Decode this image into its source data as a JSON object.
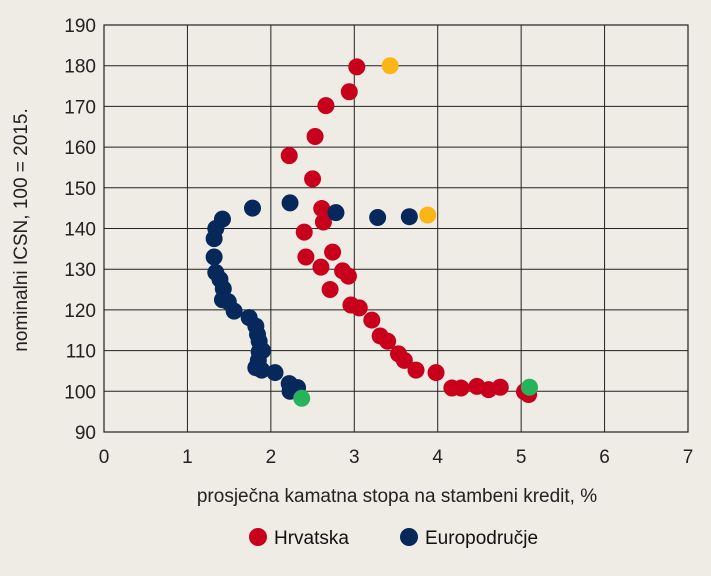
{
  "chart_data": {
    "type": "scatter",
    "title": "",
    "xlabel": "prosječna kamatna stopa na stambeni kredit, %",
    "ylabel": "nominalni ICSN, 100 = 2015.",
    "xlim": [
      0,
      7
    ],
    "ylim": [
      90,
      190
    ],
    "x_ticks": [
      "0",
      "1",
      "2",
      "3",
      "4",
      "5",
      "6",
      "7"
    ],
    "y_ticks": [
      "90",
      "100",
      "110",
      "120",
      "130",
      "140",
      "150",
      "160",
      "170",
      "180",
      "190"
    ],
    "grid": true,
    "legend_position": "bottom",
    "colors": {
      "hrvatska": "#c8001c",
      "europodrucje": "#06285a",
      "highlight_last": "#fdb515",
      "highlight_first": "#27b35b",
      "grid": "#222222",
      "background": "#efebe5"
    },
    "series": [
      {
        "name": "Hrvatska",
        "color_key": "hrvatska",
        "x": [
          5.09,
          5.04,
          4.75,
          4.61,
          4.47,
          4.28,
          4.17,
          3.98,
          3.74,
          3.6,
          3.53,
          3.4,
          3.31,
          3.21,
          3.06,
          2.96,
          2.93,
          2.86,
          2.71,
          2.74,
          2.6,
          2.42,
          2.4,
          2.63,
          2.61,
          2.5,
          2.22,
          2.53,
          2.66,
          2.94,
          3.03
        ],
        "y": [
          99.2,
          99.9,
          101.0,
          100.4,
          101.2,
          100.8,
          100.8,
          104.6,
          105.2,
          107.6,
          109.2,
          112.3,
          113.6,
          117.5,
          120.5,
          121.2,
          128.3,
          129.6,
          125.0,
          134.2,
          130.5,
          133.0,
          139.1,
          141.6,
          144.9,
          152.2,
          157.9,
          162.6,
          170.2,
          173.6,
          179.7
        ]
      },
      {
        "name": "Europodručje",
        "color_key": "europodrucje",
        "x": [
          2.32,
          2.23,
          2.22,
          2.05,
          1.89,
          1.82,
          1.85,
          1.86,
          1.9,
          1.86,
          1.84,
          1.82,
          1.74,
          1.56,
          1.49,
          1.42,
          1.43,
          1.39,
          1.34,
          1.32,
          1.32,
          1.34,
          1.42,
          1.78,
          2.23,
          2.78,
          3.28,
          3.66
        ],
        "y": [
          100.9,
          100.0,
          101.9,
          104.6,
          105.2,
          105.8,
          107.6,
          109.7,
          110.0,
          112.3,
          114.0,
          116.0,
          118.1,
          119.7,
          122.0,
          122.5,
          125.2,
          127.5,
          129.2,
          133.0,
          137.5,
          140.0,
          142.3,
          145.0,
          146.3,
          143.9,
          142.7,
          142.9
        ]
      }
    ],
    "highlights": [
      {
        "series": "Hrvatska",
        "role": "first",
        "color_key": "highlight_first",
        "x": 5.1,
        "y": 101.0
      },
      {
        "series": "Europodručje",
        "role": "first",
        "color_key": "highlight_first",
        "x": 2.37,
        "y": 98.3
      },
      {
        "series": "Hrvatska",
        "role": "last",
        "color_key": "highlight_last",
        "x": 3.43,
        "y": 180.0
      },
      {
        "series": "Europodručje",
        "role": "last",
        "color_key": "highlight_last",
        "x": 3.88,
        "y": 143.3
      }
    ]
  },
  "legend": {
    "items": [
      {
        "label": "Hrvatska",
        "color_key": "hrvatska"
      },
      {
        "label": "Europodručje",
        "color_key": "europodrucje"
      }
    ]
  }
}
